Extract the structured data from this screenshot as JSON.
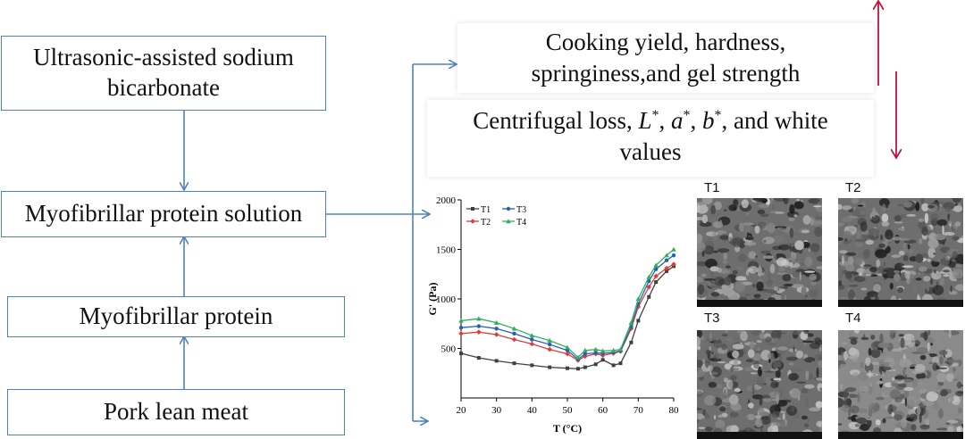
{
  "flow": {
    "box_ultrasonic": "Ultrasonic-assisted sodium bicarbonate",
    "box_myofibrillar_solution": "Myofibrillar protein solution",
    "box_myofibrillar_protein": "Myofibrillar protein",
    "box_pork": "Pork lean meat"
  },
  "results": {
    "panel1_line1": "Cooking yield,  hardness,",
    "panel1_line2": "springiness,and gel strength",
    "panel2_prefix": "Centrifugal loss, ",
    "panel2_L": "L",
    "panel2_a": "a",
    "panel2_b": "b",
    "panel2_star": "*",
    "panel2_sep": ", ",
    "panel2_and": ", and white",
    "panel2_line2": "values"
  },
  "sem": {
    "labels": [
      "T1",
      "T2",
      "T3",
      "T4"
    ]
  },
  "colors": {
    "flow_arrow": "#4f81bd",
    "indicator_arrow": "#c0143c",
    "T1": "#404040",
    "T2": "#e03c3c",
    "T3": "#2a5fb0",
    "T4": "#2fae5e"
  },
  "chart_data": {
    "type": "line",
    "xlabel": "T (°C)",
    "ylabel": "G' (Pa)",
    "xlim": [
      20,
      80
    ],
    "ylim": [
      0,
      2000
    ],
    "xticks": [
      20,
      30,
      40,
      50,
      60,
      70,
      80
    ],
    "yticks": [
      500,
      1000,
      1500,
      2000
    ],
    "legend_position": "top-left",
    "series": [
      {
        "name": "T1",
        "x": [
          20,
          25,
          30,
          35,
          40,
          45,
          50,
          53,
          55,
          58,
          60,
          63,
          65,
          68,
          70,
          73,
          75,
          78,
          80
        ],
        "values": [
          450,
          405,
          375,
          350,
          330,
          310,
          300,
          295,
          310,
          340,
          385,
          330,
          350,
          560,
          780,
          1020,
          1170,
          1280,
          1330
        ]
      },
      {
        "name": "T2",
        "x": [
          20,
          25,
          30,
          35,
          40,
          45,
          50,
          53,
          55,
          58,
          60,
          63,
          65,
          68,
          70,
          73,
          75,
          78,
          80
        ],
        "values": [
          650,
          665,
          640,
          590,
          545,
          490,
          445,
          380,
          420,
          445,
          430,
          450,
          470,
          700,
          920,
          1120,
          1230,
          1310,
          1350
        ]
      },
      {
        "name": "T3",
        "x": [
          20,
          25,
          30,
          35,
          40,
          45,
          50,
          53,
          55,
          58,
          60,
          63,
          65,
          68,
          70,
          73,
          75,
          78,
          80
        ],
        "values": [
          710,
          725,
          700,
          650,
          590,
          540,
          480,
          390,
          445,
          455,
          450,
          460,
          475,
          720,
          950,
          1180,
          1300,
          1390,
          1440
        ]
      },
      {
        "name": "T4",
        "x": [
          20,
          25,
          30,
          35,
          40,
          45,
          50,
          53,
          55,
          58,
          60,
          63,
          65,
          68,
          70,
          73,
          75,
          78,
          80
        ],
        "values": [
          780,
          800,
          760,
          700,
          630,
          580,
          510,
          410,
          480,
          490,
          475,
          480,
          490,
          760,
          1000,
          1220,
          1340,
          1440,
          1500
        ]
      }
    ]
  }
}
